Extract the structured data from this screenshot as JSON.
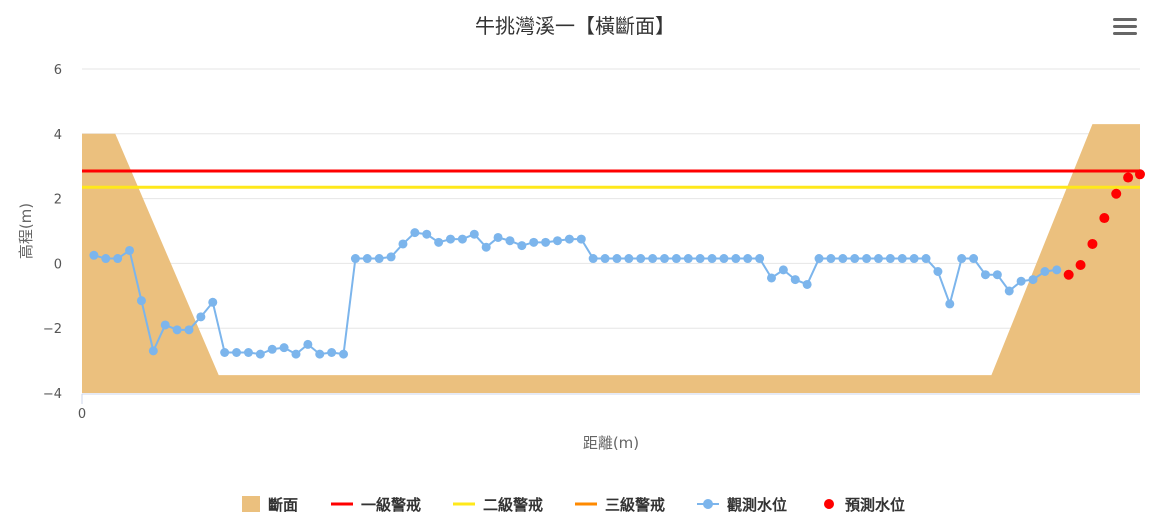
{
  "chart_data": {
    "type": "line",
    "title": "牛挑灣溪一【橫斷面】",
    "xlabel": "距離(m)",
    "ylabel": "高程(m)",
    "ylim": [
      -4,
      6
    ],
    "yticks": [
      "6",
      "4",
      "2",
      "0",
      "−2",
      "−4"
    ],
    "xticks": [
      "0"
    ],
    "grid": true,
    "legend_position": "bottom-center",
    "colors": {
      "section": "#ebc07e",
      "level1": "#ff0000",
      "level2": "#ffe81a",
      "level3": "#ff8a00",
      "observed": "#7cb5ec",
      "forecast": "#ff0000"
    },
    "series": [
      {
        "name": "斷面",
        "kind": "area",
        "points": [
          [
            0,
            4.0
          ],
          [
            2.8,
            4.0
          ],
          [
            11.5,
            -3.45
          ],
          [
            76.5,
            -3.45
          ],
          [
            85,
            4.3
          ],
          [
            89,
            4.3
          ]
        ]
      },
      {
        "name": "一級警戒",
        "kind": "hline",
        "value": 2.85
      },
      {
        "name": "二級警戒",
        "kind": "hline",
        "value": 2.35
      },
      {
        "name": "三級警戒",
        "kind": "hline",
        "value": null
      },
      {
        "name": "觀測水位",
        "kind": "line",
        "points": [
          [
            1,
            0.25
          ],
          [
            2,
            0.15
          ],
          [
            3,
            0.15
          ],
          [
            4,
            0.4
          ],
          [
            5,
            -1.15
          ],
          [
            6,
            -2.7
          ],
          [
            7,
            -1.9
          ],
          [
            8,
            -2.05
          ],
          [
            9,
            -2.05
          ],
          [
            10,
            -1.65
          ],
          [
            11,
            -1.2
          ],
          [
            12,
            -2.75
          ],
          [
            13,
            -2.75
          ],
          [
            14,
            -2.75
          ],
          [
            15,
            -2.8
          ],
          [
            16,
            -2.65
          ],
          [
            17,
            -2.6
          ],
          [
            18,
            -2.8
          ],
          [
            19,
            -2.5
          ],
          [
            20,
            -2.8
          ],
          [
            21,
            -2.75
          ],
          [
            22,
            -2.8
          ],
          [
            23,
            0.15
          ],
          [
            24,
            0.15
          ],
          [
            25,
            0.15
          ],
          [
            26,
            0.2
          ],
          [
            27,
            0.6
          ],
          [
            28,
            0.95
          ],
          [
            29,
            0.9
          ],
          [
            30,
            0.65
          ],
          [
            31,
            0.75
          ],
          [
            32,
            0.75
          ],
          [
            33,
            0.9
          ],
          [
            34,
            0.5
          ],
          [
            35,
            0.8
          ],
          [
            36,
            0.7
          ],
          [
            37,
            0.55
          ],
          [
            38,
            0.65
          ],
          [
            39,
            0.65
          ],
          [
            40,
            0.7
          ],
          [
            41,
            0.75
          ],
          [
            42,
            0.75
          ],
          [
            43,
            0.15
          ],
          [
            44,
            0.15
          ],
          [
            45,
            0.15
          ],
          [
            46,
            0.15
          ],
          [
            47,
            0.15
          ],
          [
            48,
            0.15
          ],
          [
            49,
            0.15
          ],
          [
            50,
            0.15
          ],
          [
            51,
            0.15
          ],
          [
            52,
            0.15
          ],
          [
            53,
            0.15
          ],
          [
            54,
            0.15
          ],
          [
            55,
            0.15
          ],
          [
            56,
            0.15
          ],
          [
            57,
            0.15
          ],
          [
            58,
            -0.45
          ],
          [
            59,
            -0.2
          ],
          [
            60,
            -0.5
          ],
          [
            61,
            -0.65
          ],
          [
            62,
            0.15
          ],
          [
            63,
            0.15
          ],
          [
            64,
            0.15
          ],
          [
            65,
            0.15
          ],
          [
            66,
            0.15
          ],
          [
            67,
            0.15
          ],
          [
            68,
            0.15
          ],
          [
            69,
            0.15
          ],
          [
            70,
            0.15
          ],
          [
            71,
            0.15
          ],
          [
            72,
            -0.25
          ],
          [
            73,
            -1.25
          ],
          [
            74,
            0.15
          ],
          [
            75,
            0.15
          ],
          [
            76,
            -0.35
          ],
          [
            77,
            -0.35
          ],
          [
            78,
            -0.85
          ],
          [
            79,
            -0.55
          ],
          [
            80,
            -0.5
          ],
          [
            81,
            -0.25
          ],
          [
            82,
            -0.2
          ]
        ]
      },
      {
        "name": "預測水位",
        "kind": "scatter",
        "points": [
          [
            83,
            -0.35
          ],
          [
            84,
            -0.05
          ],
          [
            85,
            0.6
          ],
          [
            86,
            1.4
          ],
          [
            87,
            2.15
          ],
          [
            88,
            2.65
          ],
          [
            89,
            2.75
          ]
        ]
      }
    ]
  }
}
